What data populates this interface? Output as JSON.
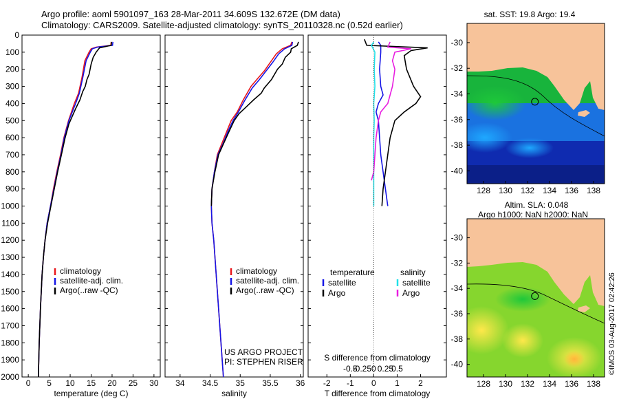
{
  "header": {
    "line1": "Argo profile: aoml 5901097_163 28-Mar-2011 34.609S 132.672E (DM data)",
    "line2": "Climatology: CARS2009. Satellite-adjusted climatology: synTS_20110328.nc (0.52d earlier)"
  },
  "colors": {
    "climatology": "#e8161b",
    "satellite": "#1515e6",
    "argo": "#000000",
    "sat_salinity": "#22e0e8",
    "argo_salinity": "#e81de0",
    "land": "#f7c39a"
  },
  "chart_data": [
    {
      "type": "line",
      "panel": "temperature",
      "xlabel": "temperature (deg C)",
      "xticks": [
        0,
        5,
        10,
        15,
        20,
        25,
        30
      ],
      "xlim": [
        -1.5,
        31.5
      ],
      "yticks": [
        0,
        100,
        200,
        300,
        400,
        500,
        600,
        700,
        800,
        900,
        1000,
        1100,
        1200,
        1300,
        1400,
        1500,
        1600,
        1700,
        1800,
        1900,
        2000
      ],
      "ylim": [
        2000,
        0
      ],
      "legend": [
        "climatology",
        "satellite-adj. clim.",
        "Argo(..raw -QC)"
      ],
      "series": [
        {
          "name": "climatology",
          "color": "#e8161b",
          "points": [
            [
              19.8,
              40
            ],
            [
              19.7,
              60
            ],
            [
              16.3,
              70
            ],
            [
              15,
              80
            ],
            [
              14.5,
              100
            ],
            [
              13.5,
              150
            ],
            [
              12.8,
              250
            ],
            [
              12,
              340
            ],
            [
              11,
              400
            ],
            [
              10.3,
              450
            ],
            [
              9.6,
              500
            ],
            [
              8.5,
              600
            ],
            [
              7.7,
              700
            ],
            [
              6.8,
              800
            ],
            [
              6,
              900
            ],
            [
              5.3,
              1000
            ],
            [
              4.5,
              1100
            ],
            [
              4,
              1200
            ],
            [
              3.6,
              1300
            ],
            [
              3.3,
              1400
            ],
            [
              3.1,
              1500
            ],
            [
              2.9,
              1600
            ],
            [
              2.75,
              1700
            ],
            [
              2.6,
              1800
            ],
            [
              2.5,
              1900
            ],
            [
              2.4,
              2000
            ]
          ]
        },
        {
          "name": "satellite-adj. clim.",
          "color": "#1515e6",
          "points": [
            [
              20.2,
              40
            ],
            [
              20.1,
              60
            ],
            [
              16.6,
              70
            ],
            [
              15.3,
              80
            ],
            [
              14.8,
              100
            ],
            [
              13.8,
              150
            ],
            [
              13,
              250
            ],
            [
              12.2,
              340
            ],
            [
              11.3,
              400
            ],
            [
              10.5,
              450
            ],
            [
              9.7,
              500
            ],
            [
              8.6,
              600
            ],
            [
              7.8,
              700
            ],
            [
              6.9,
              800
            ],
            [
              6.1,
              900
            ],
            [
              5.3,
              1000
            ],
            [
              4.5,
              1100
            ],
            [
              4,
              1200
            ],
            [
              3.6,
              1300
            ],
            [
              3.3,
              1400
            ],
            [
              3.1,
              1500
            ],
            [
              2.9,
              1600
            ],
            [
              2.75,
              1700
            ],
            [
              2.6,
              1800
            ],
            [
              2.5,
              1900
            ],
            [
              2.4,
              2000
            ]
          ]
        },
        {
          "name": "Argo(..raw -QC)",
          "color": "#000000",
          "points": [
            [
              19.9,
              40
            ],
            [
              19.8,
              60
            ],
            [
              17,
              75
            ],
            [
              16.2,
              100
            ],
            [
              15.5,
              130
            ],
            [
              15,
              170
            ],
            [
              14.5,
              230
            ],
            [
              14,
              260
            ],
            [
              13.6,
              300
            ],
            [
              13,
              330
            ],
            [
              12.3,
              380
            ],
            [
              11.3,
              430
            ],
            [
              10.4,
              480
            ],
            [
              9.7,
              520
            ],
            [
              8.8,
              600
            ],
            [
              7.9,
              700
            ],
            [
              7,
              800
            ],
            [
              6.2,
              900
            ],
            [
              5.4,
              1000
            ],
            [
              4.6,
              1100
            ],
            [
              4,
              1200
            ],
            [
              3.6,
              1300
            ],
            [
              3.3,
              1400
            ],
            [
              3.1,
              1500
            ],
            [
              2.9,
              1600
            ],
            [
              2.75,
              1700
            ],
            [
              2.6,
              1800
            ],
            [
              2.5,
              1900
            ],
            [
              2.4,
              2000
            ]
          ]
        }
      ]
    },
    {
      "type": "line",
      "panel": "salinity",
      "xlabel": "salinity",
      "xticks": [
        34,
        34.5,
        35,
        35.5,
        36
      ],
      "xlim": [
        33.75,
        36.05
      ],
      "yticks": [
        0,
        100,
        200,
        300,
        400,
        500,
        600,
        700,
        800,
        900,
        1000,
        1100,
        1200,
        1300,
        1400,
        1500,
        1600,
        1700,
        1800,
        1900,
        2000
      ],
      "ylim": [
        2000,
        0
      ],
      "legend": [
        "climatology",
        "satellite-adj. clim.",
        "Argo(..raw -QC)"
      ],
      "annotation": [
        "US ARGO PROJECT",
        "PI: STEPHEN RISER"
      ],
      "series": [
        {
          "name": "climatology",
          "color": "#e8161b",
          "points": [
            [
              35.86,
              40
            ],
            [
              35.84,
              60
            ],
            [
              35.7,
              80
            ],
            [
              35.6,
              110
            ],
            [
              35.5,
              160
            ],
            [
              35.4,
              210
            ],
            [
              35.3,
              250
            ],
            [
              35.18,
              300
            ],
            [
              35.05,
              380
            ],
            [
              34.95,
              450
            ],
            [
              34.85,
              500
            ],
            [
              34.78,
              560
            ],
            [
              34.7,
              630
            ],
            [
              34.62,
              700
            ],
            [
              34.57,
              800
            ],
            [
              34.53,
              900
            ],
            [
              34.52,
              1000
            ],
            [
              34.53,
              1100
            ],
            [
              34.56,
              1200
            ],
            [
              34.6,
              1400
            ],
            [
              34.64,
              1600
            ],
            [
              34.68,
              1800
            ],
            [
              34.72,
              2000
            ]
          ]
        },
        {
          "name": "satellite-adj. clim.",
          "color": "#1515e6",
          "points": [
            [
              35.87,
              40
            ],
            [
              35.86,
              60
            ],
            [
              35.74,
              80
            ],
            [
              35.64,
              110
            ],
            [
              35.54,
              160
            ],
            [
              35.43,
              210
            ],
            [
              35.32,
              260
            ],
            [
              35.2,
              310
            ],
            [
              35.08,
              380
            ],
            [
              34.97,
              450
            ],
            [
              34.88,
              500
            ],
            [
              34.8,
              560
            ],
            [
              34.72,
              630
            ],
            [
              34.63,
              700
            ],
            [
              34.57,
              800
            ],
            [
              34.53,
              900
            ],
            [
              34.52,
              1000
            ],
            [
              34.53,
              1100
            ],
            [
              34.56,
              1200
            ],
            [
              34.6,
              1400
            ],
            [
              34.64,
              1600
            ],
            [
              34.68,
              1800
            ],
            [
              34.72,
              2000
            ]
          ]
        },
        {
          "name": "Argo(..raw -QC)",
          "color": "#000000",
          "points": [
            [
              35.97,
              40
            ],
            [
              35.95,
              60
            ],
            [
              35.85,
              80
            ],
            [
              35.84,
              100
            ],
            [
              35.75,
              130
            ],
            [
              35.7,
              170
            ],
            [
              35.62,
              200
            ],
            [
              35.52,
              260
            ],
            [
              35.4,
              310
            ],
            [
              35.35,
              340
            ],
            [
              35.22,
              380
            ],
            [
              35.1,
              420
            ],
            [
              34.98,
              460
            ],
            [
              34.9,
              500
            ],
            [
              34.82,
              560
            ],
            [
              34.73,
              630
            ],
            [
              34.64,
              700
            ],
            [
              34.58,
              800
            ],
            [
              34.53,
              900
            ],
            [
              34.52,
              1000
            ]
          ]
        }
      ]
    },
    {
      "type": "line",
      "panel": "differences",
      "xlabel": "T difference from climatology",
      "xticks": [
        -2,
        -1,
        0,
        1,
        2
      ],
      "xlim": [
        -2.8,
        3.1
      ],
      "top_label": "S difference from climatology",
      "top_ticks": [
        "-0.5",
        "-0.25",
        "0",
        "0.25",
        "0.5"
      ],
      "ylim": [
        2000,
        0
      ],
      "legend": [
        {
          "group": "temperature",
          "entries": [
            "satellite",
            "Argo"
          ]
        },
        {
          "group": "salinity",
          "entries": [
            "satellite",
            "Argo"
          ]
        }
      ],
      "series": [
        {
          "name": "temperature satellite",
          "color": "#1515e6",
          "points": [
            [
              0.2,
              40
            ],
            [
              0.3,
              60
            ],
            [
              0.3,
              100
            ],
            [
              0.25,
              200
            ],
            [
              0.3,
              300
            ],
            [
              0.4,
              350
            ],
            [
              0.2,
              400
            ],
            [
              0.1,
              450
            ],
            [
              0.2,
              500
            ],
            [
              0.25,
              600
            ],
            [
              0.3,
              700
            ],
            [
              0.4,
              800
            ],
            [
              0.5,
              900
            ],
            [
              0.6,
              1000
            ]
          ]
        },
        {
          "name": "temperature Argo",
          "color": "#000000",
          "points": [
            [
              -0.4,
              25
            ],
            [
              -0.3,
              60
            ],
            [
              2.3,
              75
            ],
            [
              1.6,
              90
            ],
            [
              1.3,
              120
            ],
            [
              1.4,
              200
            ],
            [
              1.7,
              300
            ],
            [
              2,
              360
            ],
            [
              1.8,
              400
            ],
            [
              1.3,
              450
            ],
            [
              0.9,
              500
            ],
            [
              0.7,
              600
            ],
            [
              0.6,
              700
            ],
            [
              0.5,
              800
            ],
            [
              0.4,
              900
            ],
            [
              0.35,
              1000
            ]
          ]
        },
        {
          "name": "salinity satellite",
          "color": "#22e0e8",
          "points": [
            [
              0,
              40
            ],
            [
              -0.1,
              60
            ],
            [
              0.05,
              100
            ],
            [
              0.02,
              200
            ],
            [
              0.05,
              300
            ],
            [
              0,
              400
            ],
            [
              0.02,
              500
            ],
            [
              0,
              600
            ],
            [
              0,
              700
            ],
            [
              0,
              800
            ],
            [
              0,
              900
            ],
            [
              0,
              1000
            ]
          ]
        },
        {
          "name": "salinity Argo",
          "color": "#e81de0",
          "points": [
            [
              0.7,
              40
            ],
            [
              0.6,
              70
            ],
            [
              1.6,
              80
            ],
            [
              0.9,
              100
            ],
            [
              0.8,
              150
            ],
            [
              0.9,
              200
            ],
            [
              0.8,
              300
            ],
            [
              0.7,
              350
            ],
            [
              0.6,
              400
            ],
            [
              0.3,
              450
            ],
            [
              0.2,
              500
            ],
            [
              0.1,
              600
            ],
            [
              0.05,
              700
            ],
            [
              0,
              800
            ],
            [
              -0.1,
              850
            ]
          ]
        }
      ]
    },
    {
      "type": "heatmap",
      "panel": "map-sst",
      "title": "sat. SST: 19.8 Argo: 19.4",
      "xticks": [
        128,
        130,
        132,
        134,
        136,
        138
      ],
      "yticks": [
        -30,
        -32,
        -34,
        -36,
        -38,
        -40
      ],
      "xlim": [
        126.5,
        139
      ],
      "ylim": [
        -41,
        -28.5
      ],
      "marker": {
        "lon": 132.672,
        "lat": -34.609
      }
    },
    {
      "type": "heatmap",
      "panel": "map-sla",
      "title_lines": [
        "Altim. SLA: 0.048",
        "Argo h1000: NaN h2000: NaN"
      ],
      "xticks": [
        128,
        130,
        132,
        134,
        136,
        138
      ],
      "yticks": [
        -30,
        -32,
        -34,
        -36,
        -38,
        -40
      ],
      "xlim": [
        126.5,
        139
      ],
      "ylim": [
        -41,
        -28.5
      ],
      "marker": {
        "lon": 132.672,
        "lat": -34.609
      }
    }
  ],
  "stamp": "©IMOS 03-Aug-2017 02:42:26"
}
